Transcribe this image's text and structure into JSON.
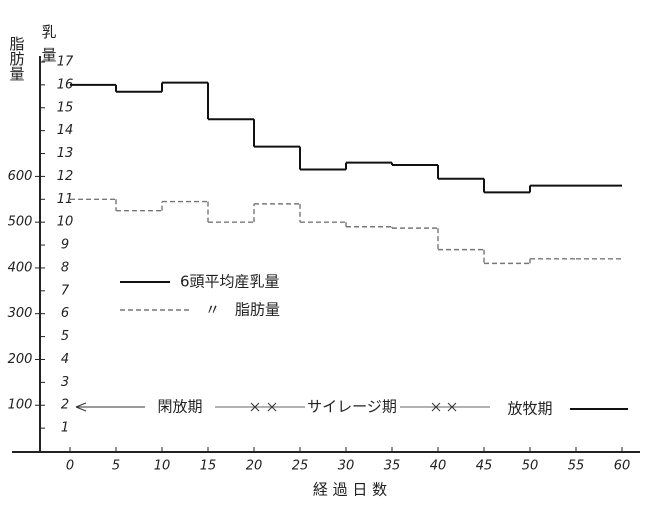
{
  "chart_data": {
    "type": "line",
    "step": "post",
    "xlabel": "経 過 日 数",
    "ylabel": "乳量",
    "y2label": "脂肪量",
    "x": [
      0,
      5,
      10,
      15,
      20,
      25,
      30,
      35,
      40,
      45,
      50,
      55
    ],
    "xlim": [
      0,
      60
    ],
    "xticks": [
      0,
      5,
      10,
      15,
      20,
      25,
      30,
      35,
      40,
      45,
      50,
      55,
      60
    ],
    "ylim": [
      0,
      17
    ],
    "yticks": [
      1,
      2,
      3,
      4,
      5,
      6,
      7,
      8,
      9,
      10,
      11,
      12,
      13,
      14,
      15,
      16,
      17
    ],
    "y2lim": [
      0,
      850
    ],
    "y2ticks": [
      100,
      200,
      300,
      400,
      500,
      600
    ],
    "series": [
      {
        "name": "6頭平均産乳量",
        "color": "#111111",
        "dash": false,
        "values": [
          16.0,
          15.7,
          16.1,
          14.5,
          13.3,
          12.3,
          12.6,
          12.5,
          11.9,
          11.3,
          11.6,
          11.6
        ]
      },
      {
        "name": "〃　脂肪量",
        "color": "#777777",
        "dash": true,
        "axis": "y2",
        "values": [
          550,
          525,
          545,
          500,
          540,
          500,
          490,
          487,
          440,
          410,
          420,
          420
        ]
      }
    ],
    "periods": [
      "閑放期",
      "サイレージ期",
      "放牧期"
    ]
  }
}
